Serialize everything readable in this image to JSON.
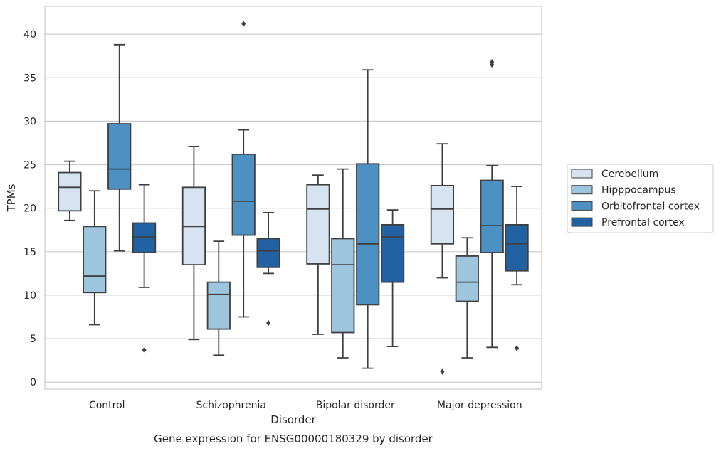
{
  "caption": "Gene expression for ENSG00000180329 by disorder",
  "chart_data": {
    "type": "box",
    "xlabel": "Disorder",
    "ylabel": "TPMs",
    "ylim": [
      -0.8,
      43.2
    ],
    "yticks": [
      0,
      5,
      10,
      15,
      20,
      25,
      30,
      35,
      40
    ],
    "grid": true,
    "legend_position": "right",
    "categories": [
      "Control",
      "Schizophrenia",
      "Bipolar disorder",
      "Major depression"
    ],
    "series": [
      {
        "name": "Cerebellum",
        "color": "#d6e4f2",
        "boxes": [
          {
            "whislo": 18.6,
            "q1": 19.7,
            "med": 22.4,
            "q3": 24.1,
            "whishi": 25.4,
            "fliers": []
          },
          {
            "whislo": 4.9,
            "q1": 13.5,
            "med": 17.9,
            "q3": 22.4,
            "whishi": 27.1,
            "fliers": []
          },
          {
            "whislo": 5.5,
            "q1": 13.6,
            "med": 19.9,
            "q3": 22.7,
            "whishi": 23.8,
            "fliers": []
          },
          {
            "whislo": 12.0,
            "q1": 15.9,
            "med": 19.9,
            "q3": 22.6,
            "whishi": 27.4,
            "fliers": [
              1.2
            ]
          }
        ]
      },
      {
        "name": "Hipppocampus",
        "color": "#9dc5de",
        "boxes": [
          {
            "whislo": 6.6,
            "q1": 10.3,
            "med": 12.2,
            "q3": 17.9,
            "whishi": 22.0,
            "fliers": []
          },
          {
            "whislo": 3.1,
            "q1": 6.1,
            "med": 10.1,
            "q3": 11.5,
            "whishi": 16.2,
            "fliers": []
          },
          {
            "whislo": 2.8,
            "q1": 5.7,
            "med": 13.5,
            "q3": 16.5,
            "whishi": 24.5,
            "fliers": []
          },
          {
            "whislo": 2.8,
            "q1": 9.3,
            "med": 11.5,
            "q3": 14.5,
            "whishi": 16.6,
            "fliers": []
          }
        ]
      },
      {
        "name": "Orbitofrontal cortex",
        "color": "#4d91c3",
        "boxes": [
          {
            "whislo": 15.1,
            "q1": 22.2,
            "med": 24.5,
            "q3": 29.7,
            "whishi": 38.8,
            "fliers": []
          },
          {
            "whislo": 7.5,
            "q1": 16.9,
            "med": 20.8,
            "q3": 26.2,
            "whishi": 29.0,
            "fliers": [
              41.2
            ]
          },
          {
            "whislo": 1.6,
            "q1": 8.9,
            "med": 15.9,
            "q3": 25.1,
            "whishi": 35.9,
            "fliers": []
          },
          {
            "whislo": 4.0,
            "q1": 14.9,
            "med": 18.0,
            "q3": 23.2,
            "whishi": 24.9,
            "fliers": [
              36.5,
              36.8
            ]
          }
        ]
      },
      {
        "name": "Prefrontal cortex",
        "color": "#2262a3",
        "boxes": [
          {
            "whislo": 10.9,
            "q1": 14.9,
            "med": 16.7,
            "q3": 18.3,
            "whishi": 22.7,
            "fliers": [
              3.7
            ]
          },
          {
            "whislo": 12.5,
            "q1": 13.2,
            "med": 15.1,
            "q3": 16.5,
            "whishi": 19.5,
            "fliers": [
              6.8
            ]
          },
          {
            "whislo": 4.1,
            "q1": 11.5,
            "med": 16.7,
            "q3": 18.1,
            "whishi": 19.8,
            "fliers": []
          },
          {
            "whislo": 11.2,
            "q1": 12.8,
            "med": 15.9,
            "q3": 18.1,
            "whishi": 22.5,
            "fliers": [
              3.9
            ]
          }
        ]
      }
    ]
  }
}
